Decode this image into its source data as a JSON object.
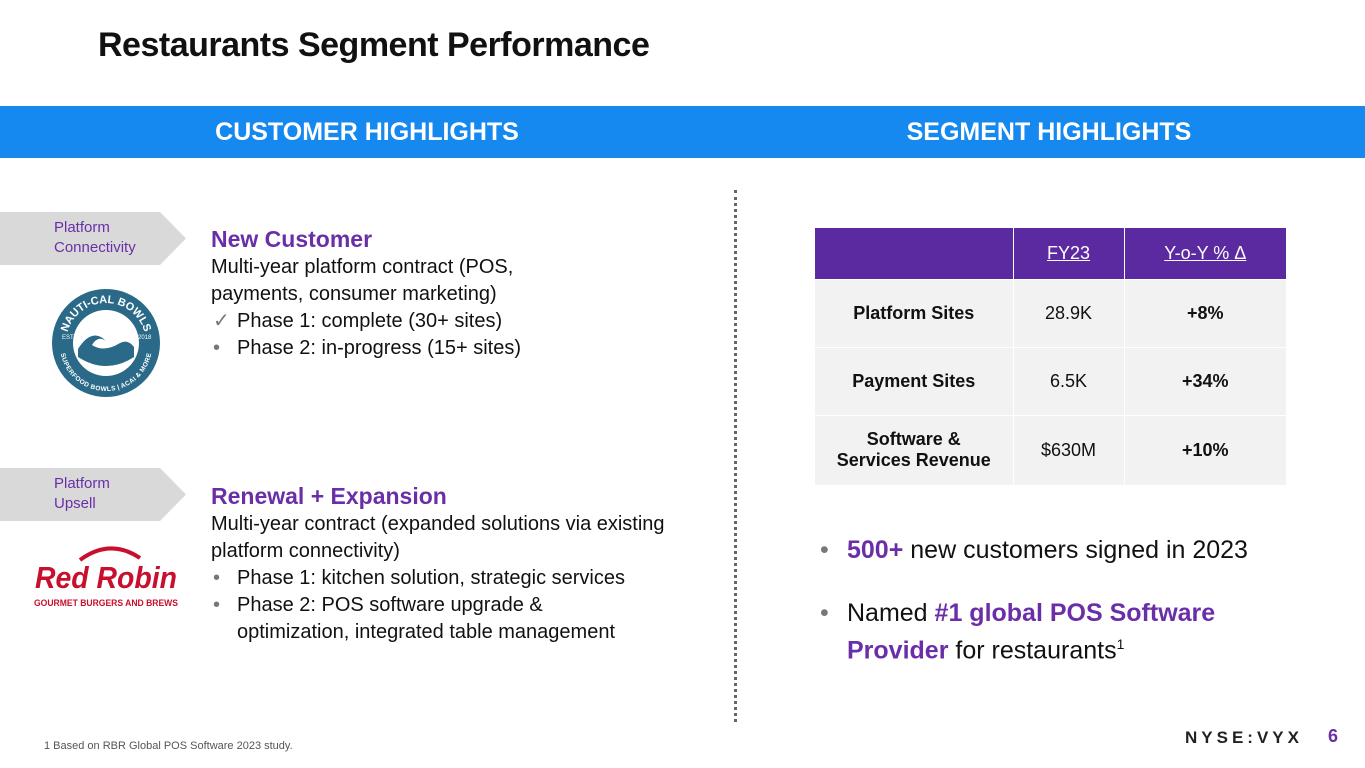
{
  "header": {
    "title": "Restaurants Segment Performance"
  },
  "banner": {
    "left": "CUSTOMER HIGHLIGHTS",
    "right": "SEGMENT HIGHLIGHTS"
  },
  "customers": [
    {
      "tag": "Platform Connectivity",
      "heading": "New Customer",
      "description": "Multi-year platform contract (POS, payments, consumer marketing)",
      "items": [
        {
          "marker": "✓",
          "text": "Phase 1: complete (30+ sites)"
        },
        {
          "marker": "•",
          "text": "Phase 2: in-progress (15+ sites)"
        }
      ],
      "logo": {
        "name": "NAUTI-CAL BOWLS",
        "tagline": "SUPERFOOD BOWLS | ACAI & MORE",
        "est": "EST.",
        "year": "2018"
      }
    },
    {
      "tag": "Platform Upsell",
      "heading": "Renewal + Expansion",
      "description": "Multi-year contract (expanded solutions via existing platform connectivity)",
      "items": [
        {
          "marker": "•",
          "text": "Phase 1: kitchen solution, strategic services"
        },
        {
          "marker": "•",
          "text": "Phase 2: POS software upgrade & optimization, integrated table management"
        }
      ],
      "logo": {
        "name": "Red Robin",
        "tagline": "GOURMET BURGERS AND BREWS"
      }
    }
  ],
  "table": {
    "header": [
      "FY23",
      "Y-o-Y % Δ"
    ],
    "rows": [
      [
        "Platform Sites",
        "28.9K",
        "+8%"
      ],
      [
        "Payment Sites",
        "6.5K",
        "+34%"
      ],
      [
        "Software & Services Revenue",
        "$630M",
        "+10%"
      ]
    ]
  },
  "highlights": [
    {
      "marker": "•",
      "parts": [
        {
          "text": "500+",
          "accent": true
        },
        {
          "text": "new customers signed in 2023",
          "accent": false
        }
      ]
    },
    {
      "marker": "•",
      "parts": [
        {
          "text": "Named",
          "accent": false
        },
        {
          "text": "#1 global POS Software Provider",
          "accent": true
        },
        {
          "text": "for restaurants",
          "accent": false
        }
      ],
      "note": "1"
    }
  ],
  "footnote": "1 Based on RBR Global POS Software 2023 study.",
  "footer": {
    "ticker": "NYSE:VYX",
    "page": "6"
  }
}
